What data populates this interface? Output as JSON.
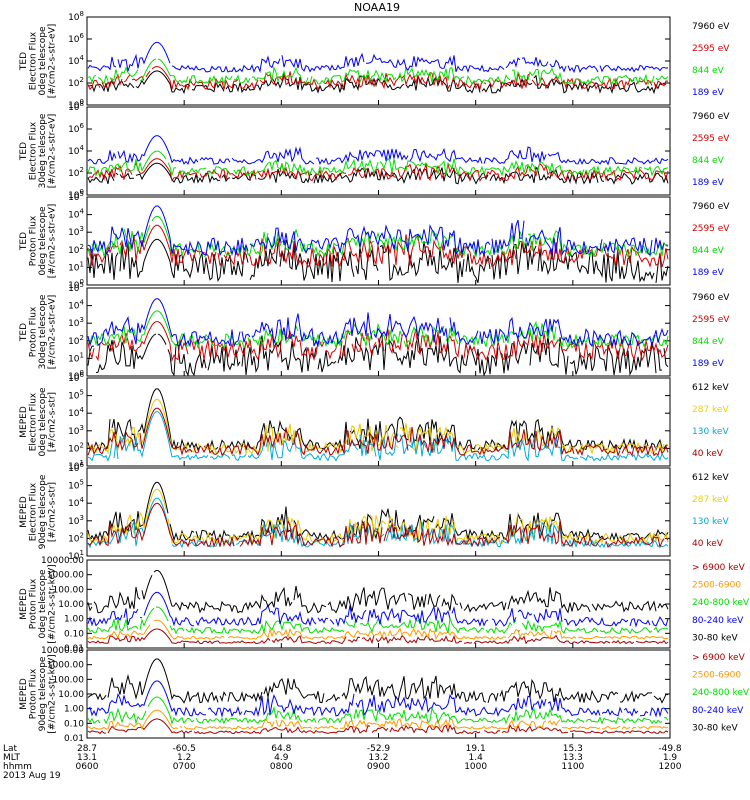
{
  "title": "NOAA19",
  "footer": {
    "rows": [
      {
        "label": "Lat",
        "values": [
          "28.7",
          "-60.5",
          "64.8",
          "-52.9",
          "19.1",
          "15.3",
          "-49.8"
        ]
      },
      {
        "label": "MLT",
        "values": [
          "13.1",
          "1.2",
          "4.9",
          "13.2",
          "1.4",
          "13.3",
          "1.9"
        ]
      },
      {
        "label": "hhmm",
        "values": [
          "0600",
          "0700",
          "0800",
          "0900",
          "1000",
          "1100",
          "1200"
        ]
      }
    ],
    "date": "2013 Aug 19"
  },
  "colors": {
    "black": "#000000",
    "blue": "#0000ff",
    "green": "#00e000",
    "red": "#d40000",
    "dark_red": "#aa0000",
    "gold": "#e8c800",
    "cyan": "#00aadd",
    "orange": "#ff9900"
  },
  "chart_data": [
    {
      "type": "line",
      "ylabel": [
        "TED",
        "Electron Flux",
        "0deg telescope",
        "[#/cm2-s-str-eV]"
      ],
      "ytick_labels": [
        "10^8",
        "10^6",
        "10^4",
        "10^2",
        "10^0"
      ],
      "ylim": [
        1,
        100000000
      ],
      "yscale": "log",
      "series": [
        {
          "name": "7960 eV",
          "color": "#000000",
          "base": 1.6,
          "amp": 1.5,
          "noise": 0.5
        },
        {
          "name": "2595 eV",
          "color": "#d40000",
          "base": 1.9,
          "amp": 1.6,
          "noise": 0.5
        },
        {
          "name": "844 eV",
          "color": "#00e000",
          "base": 2.3,
          "amp": 1.9,
          "noise": 0.4
        },
        {
          "name": "189 eV",
          "color": "#0000ff",
          "base": 3.3,
          "amp": 2.4,
          "noise": 0.3
        }
      ]
    },
    {
      "type": "line",
      "ylabel": [
        "TED",
        "Electron Flux",
        "30deg telescope",
        "[#/cm2-s-str-eV]"
      ],
      "ytick_labels": [
        "10^8",
        "10^6",
        "10^4",
        "10^2",
        "10^0"
      ],
      "ylim": [
        1,
        100000000
      ],
      "yscale": "log",
      "series": [
        {
          "name": "7960 eV",
          "color": "#000000",
          "base": 1.5,
          "amp": 1.4,
          "noise": 0.5
        },
        {
          "name": "2595 eV",
          "color": "#d40000",
          "base": 1.8,
          "amp": 1.5,
          "noise": 0.5
        },
        {
          "name": "844 eV",
          "color": "#00e000",
          "base": 2.2,
          "amp": 1.8,
          "noise": 0.4
        },
        {
          "name": "189 eV",
          "color": "#0000ff",
          "base": 3.1,
          "amp": 2.3,
          "noise": 0.3
        }
      ]
    },
    {
      "type": "line",
      "ylabel": [
        "TED",
        "Proton Flux",
        "0deg telescope",
        "[#/cm2-s-str-eV]"
      ],
      "ytick_labels": [
        "10^5",
        "10^4",
        "10^3",
        "10^2",
        "10^1",
        "10^0"
      ],
      "ylim": [
        1,
        100000
      ],
      "yscale": "log",
      "series": [
        {
          "name": "7960 eV",
          "color": "#000000",
          "base": 1.0,
          "amp": 1.6,
          "noise": 0.9
        },
        {
          "name": "2595 eV",
          "color": "#d40000",
          "base": 1.6,
          "amp": 1.8,
          "noise": 0.6
        },
        {
          "name": "844 eV",
          "color": "#00e000",
          "base": 2.0,
          "amp": 1.9,
          "noise": 0.4
        },
        {
          "name": "189 eV",
          "color": "#0000ff",
          "base": 2.2,
          "amp": 2.3,
          "noise": 0.5
        }
      ]
    },
    {
      "type": "line",
      "ylabel": [
        "TED",
        "Proton Flux",
        "30deg telescope",
        "[#/cm2-s-str-eV]"
      ],
      "ytick_labels": [
        "10^5",
        "10^4",
        "10^3",
        "10^2",
        "10^1",
        "10^0"
      ],
      "ylim": [
        1,
        100000
      ],
      "yscale": "log",
      "series": [
        {
          "name": "7960 eV",
          "color": "#000000",
          "base": 0.9,
          "amp": 1.5,
          "noise": 0.9
        },
        {
          "name": "2595 eV",
          "color": "#d40000",
          "base": 1.5,
          "amp": 1.6,
          "noise": 0.6
        },
        {
          "name": "844 eV",
          "color": "#00e000",
          "base": 2.0,
          "amp": 1.7,
          "noise": 0.4
        },
        {
          "name": "189 eV",
          "color": "#0000ff",
          "base": 2.2,
          "amp": 2.2,
          "noise": 0.5
        }
      ]
    },
    {
      "type": "line",
      "ylabel": [
        "MEPED",
        "Electron Flux",
        "0deg telescope",
        "[#/cm2-s-str]"
      ],
      "ytick_labels": [
        "10^6",
        "10^5",
        "10^4",
        "10^3",
        "10^2",
        "10^1"
      ],
      "ylim": [
        10,
        1000000
      ],
      "yscale": "log",
      "series": [
        {
          "name": "612 keV",
          "color": "#000000",
          "base": 2.2,
          "amp": 3.2,
          "noise": 0.3
        },
        {
          "name": "287 keV",
          "color": "#e8c800",
          "base": 2.0,
          "amp": 2.8,
          "noise": 0.3
        },
        {
          "name": "130 keV",
          "color": "#00aadd",
          "base": 1.5,
          "amp": 2.6,
          "noise": 0.2
        },
        {
          "name": "40 keV",
          "color": "#aa0000",
          "base": 1.9,
          "amp": 2.4,
          "noise": 0.3
        }
      ]
    },
    {
      "type": "line",
      "ylabel": [
        "MEPED",
        "Electron Flux",
        "90deg telescope",
        "[#/cm2-s-str]"
      ],
      "ytick_labels": [
        "10^6",
        "10^5",
        "10^4",
        "10^3",
        "10^2",
        "10^1"
      ],
      "ylim": [
        10,
        1000000
      ],
      "yscale": "log",
      "series": [
        {
          "name": "612 keV",
          "color": "#000000",
          "base": 2.2,
          "amp": 3.0,
          "noise": 0.3
        },
        {
          "name": "287 keV",
          "color": "#e8c800",
          "base": 2.0,
          "amp": 2.8,
          "noise": 0.3
        },
        {
          "name": "130 keV",
          "color": "#00aadd",
          "base": 1.7,
          "amp": 2.6,
          "noise": 0.2
        },
        {
          "name": "40 keV",
          "color": "#aa0000",
          "base": 1.8,
          "amp": 2.2,
          "noise": 0.3
        }
      ]
    },
    {
      "type": "line",
      "ylabel": [
        "MEPED",
        "Proton Flux",
        "0deg telescope",
        "[#/cm2-s-str-keV]"
      ],
      "ytick_labels": [
        "10000.00",
        "1000.00",
        "100.00",
        "10.00",
        "1.00",
        "0.10",
        "0.01"
      ],
      "ylim": [
        0.01,
        10000
      ],
      "yscale": "log",
      "series": [
        {
          "name": "> 6900 keV",
          "color": "#aa0000",
          "base": -1.6,
          "amp": 0.9,
          "noise": 0.1
        },
        {
          "name": "2500-6900",
          "color": "#ff9900",
          "base": -1.3,
          "amp": 1.2,
          "noise": 0.1
        },
        {
          "name": "240-800 keV",
          "color": "#00e000",
          "base": -0.8,
          "amp": 1.6,
          "noise": 0.2
        },
        {
          "name": "80-240 keV",
          "color": "#0000ff",
          "base": -0.2,
          "amp": 2.0,
          "noise": 0.3
        },
        {
          "name": "30-80 keV",
          "color": "#000000",
          "base": 0.8,
          "amp": 2.5,
          "noise": 0.4
        }
      ]
    },
    {
      "type": "line",
      "ylabel": [
        "MEPED",
        "Proton Flux",
        "90deg telescope",
        "[#/cm2-s-str-keV]"
      ],
      "ytick_labels": [
        "10000.00",
        "1000.00",
        "100.00",
        "10.00",
        "1.00",
        "0.10",
        "0.01"
      ],
      "ylim": [
        0.01,
        10000
      ],
      "yscale": "log",
      "series": [
        {
          "name": "> 6900 keV",
          "color": "#aa0000",
          "base": -1.6,
          "amp": 0.9,
          "noise": 0.1
        },
        {
          "name": "2500-6900",
          "color": "#ff9900",
          "base": -1.3,
          "amp": 1.2,
          "noise": 0.1
        },
        {
          "name": "240-800 keV",
          "color": "#00e000",
          "base": -0.8,
          "amp": 1.6,
          "noise": 0.2
        },
        {
          "name": "80-240 keV",
          "color": "#0000ff",
          "base": -0.2,
          "amp": 2.1,
          "noise": 0.3
        },
        {
          "name": "30-80 keV",
          "color": "#000000",
          "base": 0.8,
          "amp": 2.6,
          "noise": 0.4
        }
      ]
    }
  ]
}
